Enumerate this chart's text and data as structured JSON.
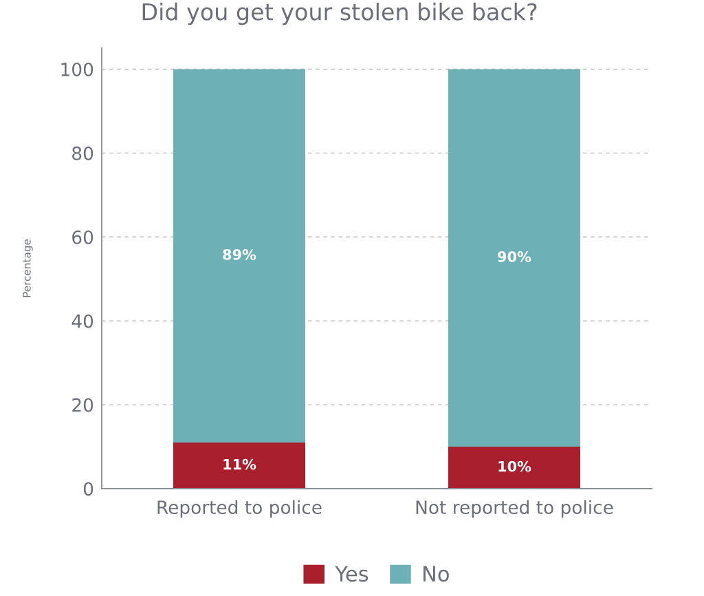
{
  "chart_data": {
    "type": "bar",
    "title": "Did you get your stolen bike back?",
    "ylabel": "Percentage",
    "categories": [
      "Reported to police",
      "Not reported to police"
    ],
    "stacked": true,
    "series": [
      {
        "name": "Yes",
        "color": "#aa1f2d",
        "values": [
          11,
          10
        ],
        "value_labels": [
          "11%",
          "10%"
        ]
      },
      {
        "name": "No",
        "color": "#6db0b6",
        "values": [
          89,
          90
        ],
        "value_labels": [
          "89%",
          "90%"
        ]
      }
    ],
    "ylim": [
      0,
      105
    ],
    "yticks": [
      0,
      20,
      40,
      60,
      80,
      100
    ],
    "grid": "y",
    "legend": "bottom"
  }
}
